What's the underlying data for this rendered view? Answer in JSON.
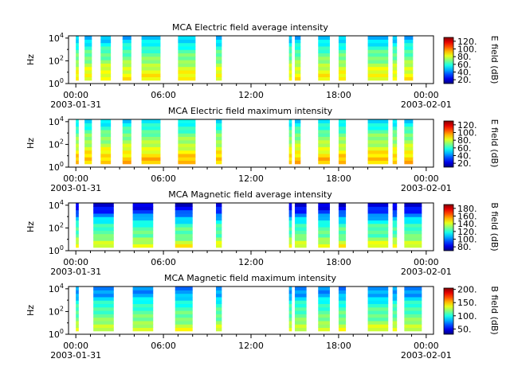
{
  "figure": {
    "background": "#ffffff"
  },
  "chart_data": [
    {
      "type": "heatmap",
      "title": "MCA  Electric field average intensity",
      "ylabel": "Hz",
      "yticks": [
        "10^0",
        "10^2",
        "10^4"
      ],
      "xticks": [
        "00:00",
        "06:00",
        "12:00",
        "18:00",
        "00:00"
      ],
      "xdates": [
        "2003-01-31",
        "2003-02-01"
      ],
      "colorbar_label": "E field (dB)",
      "colorbar_ticks": [
        "20.",
        "40.",
        "60.",
        "80.",
        "100.",
        "120."
      ],
      "colorbar_range": [
        10,
        130
      ],
      "y_scale": "log",
      "ylim_exp": [
        0,
        4.2
      ],
      "segments_hours": [
        [
          0.0,
          0.2
        ],
        [
          0.6,
          1.1
        ],
        [
          1.7,
          2.4
        ],
        [
          3.2,
          3.8
        ],
        [
          4.5,
          5.8
        ],
        [
          7.0,
          8.2
        ],
        [
          9.6,
          10.0
        ],
        [
          14.6,
          14.8
        ],
        [
          15.0,
          15.4
        ],
        [
          16.6,
          17.4
        ],
        [
          18.0,
          18.5
        ],
        [
          20.0,
          21.4
        ],
        [
          21.7,
          22.0
        ],
        [
          22.5,
          23.1
        ]
      ],
      "value_profile": [
        85,
        85,
        80,
        70,
        65,
        55,
        45
      ]
    },
    {
      "type": "heatmap",
      "title": "MCA  Electric field maximum intensity",
      "ylabel": "Hz",
      "yticks": [
        "10^0",
        "10^2",
        "10^4"
      ],
      "xticks": [
        "00:00",
        "06:00",
        "12:00",
        "18:00",
        "00:00"
      ],
      "xdates": [
        "2003-01-31",
        "2003-02-01"
      ],
      "colorbar_label": "E field (dB)",
      "colorbar_ticks": [
        "20.",
        "40.",
        "60.",
        "80.",
        "100.",
        "120."
      ],
      "colorbar_range": [
        10,
        130
      ],
      "y_scale": "log",
      "ylim_exp": [
        0,
        4.2
      ],
      "segments_hours": [
        [
          0.0,
          0.2
        ],
        [
          0.6,
          1.1
        ],
        [
          1.7,
          2.4
        ],
        [
          3.2,
          3.8
        ],
        [
          4.5,
          5.8
        ],
        [
          7.0,
          8.2
        ],
        [
          9.6,
          10.0
        ],
        [
          14.6,
          14.8
        ],
        [
          15.0,
          15.4
        ],
        [
          16.6,
          17.4
        ],
        [
          18.0,
          18.5
        ],
        [
          20.0,
          21.4
        ],
        [
          21.7,
          22.0
        ],
        [
          22.5,
          23.1
        ]
      ],
      "value_profile": [
        92,
        92,
        85,
        75,
        70,
        60,
        50
      ]
    },
    {
      "type": "heatmap",
      "title": "MCA  Magnetic field average intensity",
      "ylabel": "Hz",
      "yticks": [
        "10^0",
        "10^2",
        "10^4"
      ],
      "xticks": [
        "00:00",
        "06:00",
        "12:00",
        "18:00",
        "00:00"
      ],
      "xdates": [
        "2003-01-31",
        "2003-02-01"
      ],
      "colorbar_label": "B field (dB)",
      "colorbar_ticks": [
        "80.",
        "100.",
        "120.",
        "140.",
        "160.",
        "180."
      ],
      "colorbar_range": [
        70,
        190
      ],
      "y_scale": "log",
      "ylim_exp": [
        0,
        4.2
      ],
      "segments_hours": [
        [
          0.0,
          0.2
        ],
        [
          1.2,
          2.6
        ],
        [
          3.9,
          5.3
        ],
        [
          6.8,
          8.0
        ],
        [
          9.6,
          10.0
        ],
        [
          14.6,
          14.8
        ],
        [
          15.0,
          15.8
        ],
        [
          16.6,
          17.4
        ],
        [
          18.0,
          18.5
        ],
        [
          20.0,
          21.4
        ],
        [
          21.7,
          22.0
        ],
        [
          22.5,
          23.7
        ]
      ],
      "value_profile": [
        150,
        140,
        125,
        125,
        110,
        90,
        78
      ]
    },
    {
      "type": "heatmap",
      "title": "MCA  Magnetic field maximum intensity",
      "ylabel": "Hz",
      "yticks": [
        "10^0",
        "10^2",
        "10^4"
      ],
      "xticks": [
        "00:00",
        "06:00",
        "12:00",
        "18:00",
        "00:00"
      ],
      "xdates": [
        "2003-01-31",
        "2003-02-01"
      ],
      "colorbar_label": "B field (dB)",
      "colorbar_ticks": [
        "50.",
        "100.",
        "150.",
        "200."
      ],
      "colorbar_range": [
        30,
        205
      ],
      "y_scale": "log",
      "ylim_exp": [
        0,
        4.2
      ],
      "segments_hours": [
        [
          0.0,
          0.2
        ],
        [
          1.2,
          2.6
        ],
        [
          3.9,
          5.3
        ],
        [
          6.8,
          8.0
        ],
        [
          9.6,
          10.0
        ],
        [
          14.6,
          14.8
        ],
        [
          15.0,
          15.8
        ],
        [
          16.6,
          17.4
        ],
        [
          18.0,
          18.5
        ],
        [
          20.0,
          21.4
        ],
        [
          21.7,
          22.0
        ],
        [
          22.5,
          23.7
        ]
      ],
      "value_profile": [
        140,
        130,
        115,
        110,
        100,
        80,
        75
      ]
    }
  ]
}
